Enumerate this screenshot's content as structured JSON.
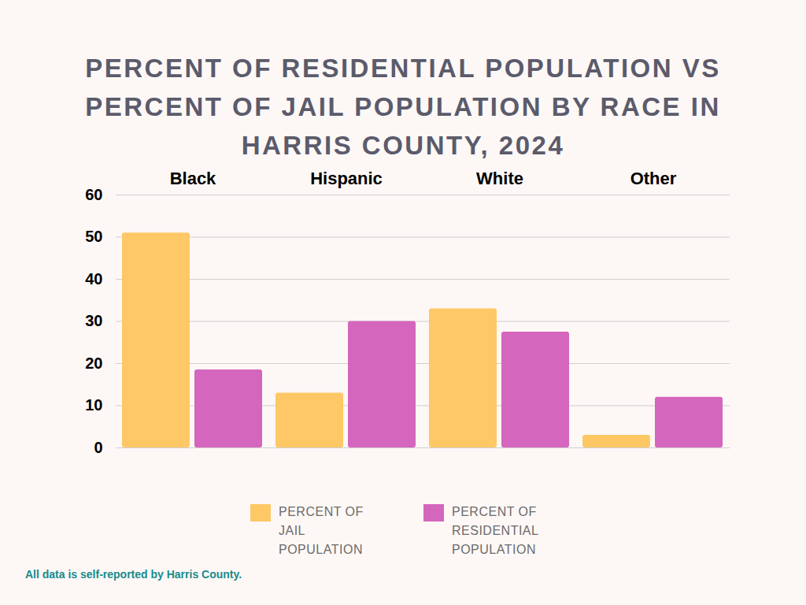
{
  "chart_data": {
    "type": "bar",
    "title": "PERCENT OF RESIDENTIAL POPULATION VS PERCENT OF JAIL POPULATION BY RACE IN HARRIS COUNTY, 2024",
    "caption": "All data is self-reported by Harris County.",
    "categories": [
      "Black",
      "Hispanic",
      "White",
      "Other"
    ],
    "series": [
      {
        "name": "PERCENT OF JAIL POPULATION",
        "color": "#fdc865",
        "values": [
          51,
          13,
          33,
          3
        ]
      },
      {
        "name": "PERCENT OF RESIDENTIAL POPULATION",
        "color": "#d466bd",
        "values": [
          18.5,
          30,
          27.5,
          12
        ]
      }
    ],
    "ylim": [
      0,
      60
    ],
    "yticks": [
      0,
      10,
      20,
      30,
      40,
      50,
      60
    ],
    "grid": true,
    "legend": "bottom"
  }
}
